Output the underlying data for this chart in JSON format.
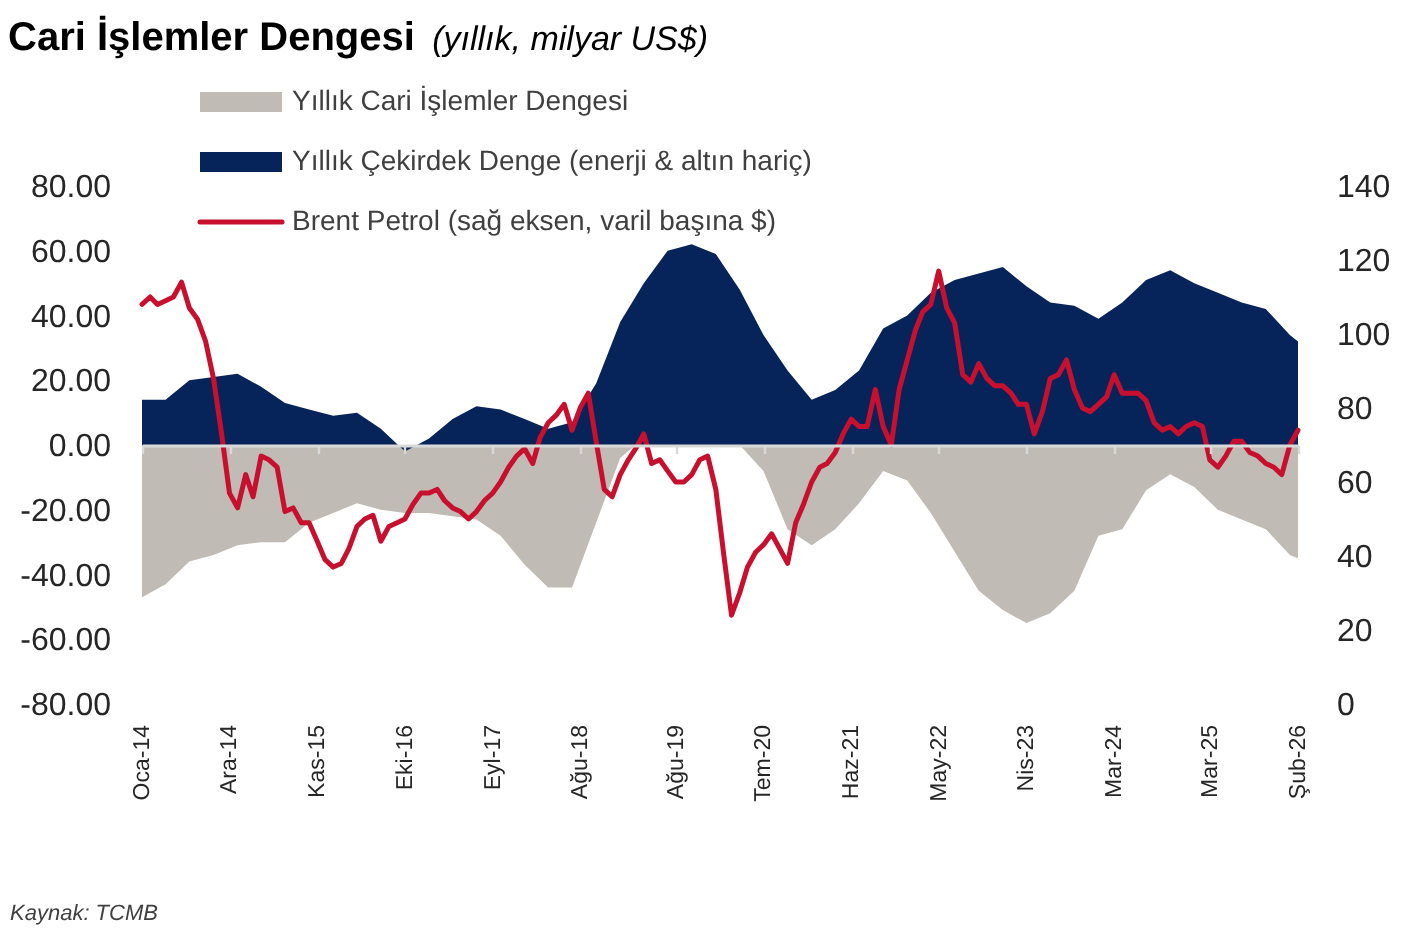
{
  "chart_data": {
    "type": "area",
    "title": "Cari İşlemler Dengesi",
    "subtitle": "(yıllık, milyar US$)",
    "annotations": [
      "Kaynak: TCMB"
    ],
    "xlim": [
      "2014-01",
      "2026-02"
    ],
    "xticks": [
      {
        "value": "2014-01",
        "label": "Oca-14"
      },
      {
        "value": "2014-12",
        "label": "Ara-14"
      },
      {
        "value": "2015-11",
        "label": "Kas-15"
      },
      {
        "value": "2016-10",
        "label": "Eki-16"
      },
      {
        "value": "2017-09",
        "label": "Eyl-17"
      },
      {
        "value": "2018-08",
        "label": "Ağu-18"
      },
      {
        "value": "2019-08",
        "label": "Ağu-19"
      },
      {
        "value": "2020-07",
        "label": "Tem-20"
      },
      {
        "value": "2021-06",
        "label": "Haz-21"
      },
      {
        "value": "2022-05",
        "label": "May-22"
      },
      {
        "value": "2023-04",
        "label": "Nis-23"
      },
      {
        "value": "2024-03",
        "label": "Mar-24"
      },
      {
        "value": "2025-03",
        "label": "Mar-25"
      },
      {
        "value": "2026-02",
        "label": "Şub-26"
      }
    ],
    "ylim": [
      -80,
      80
    ],
    "yticks": [
      {
        "value": -80,
        "label": "-80.00"
      },
      {
        "value": -60,
        "label": "-60.00"
      },
      {
        "value": -40,
        "label": "-40.00"
      },
      {
        "value": -20,
        "label": "-20.00"
      },
      {
        "value": 0,
        "label": "0.00"
      },
      {
        "value": 20,
        "label": "20.00"
      },
      {
        "value": 40,
        "label": "40.00"
      },
      {
        "value": 60,
        "label": "60.00"
      },
      {
        "value": 80,
        "label": "80.00"
      }
    ],
    "y2lim": [
      0,
      140
    ],
    "y2ticks": [
      0,
      20,
      40,
      60,
      80,
      100,
      120,
      140
    ],
    "legend": "top left",
    "series": [
      {
        "name": "Yıllık Cari İşlemler Dengesi",
        "color": "#c0bbb5",
        "x": [
          "2014-01",
          "2014-04",
          "2014-07",
          "2014-10",
          "2015-01",
          "2015-04",
          "2015-07",
          "2015-10",
          "2016-01",
          "2016-04",
          "2016-07",
          "2016-10",
          "2017-01",
          "2017-04",
          "2017-07",
          "2017-10",
          "2018-01",
          "2018-04",
          "2018-07",
          "2018-10",
          "2019-01",
          "2019-03",
          "2019-07",
          "2019-11",
          "2020-04",
          "2020-07",
          "2020-10",
          "2021-01",
          "2021-04",
          "2021-07",
          "2021-10",
          "2022-01",
          "2022-04",
          "2022-07",
          "2022-10",
          "2023-01",
          "2023-04",
          "2023-07",
          "2023-10",
          "2024-01",
          "2024-04",
          "2024-07",
          "2024-10",
          "2025-01",
          "2025-04",
          "2025-07",
          "2025-10",
          "2026-01",
          "2026-02"
        ],
        "values": [
          -47,
          -43,
          -36,
          -34,
          -31,
          -30,
          -30,
          -24,
          -21,
          -18,
          -20,
          -21,
          -21,
          -22,
          -23,
          -28,
          -37,
          -44,
          -44,
          -24,
          -4,
          0,
          null,
          null,
          0,
          -8,
          -26,
          -31,
          -26,
          -18,
          -8,
          -11,
          -21,
          -33,
          -45,
          -51,
          -55,
          -52,
          -45,
          -28,
          -26,
          -14,
          -9,
          -13,
          -20,
          -23,
          -26,
          -34,
          -35
        ]
      },
      {
        "name": "Yıllık Çekirdek Denge (enerji & altın hariç)",
        "color": "#07245a",
        "x": [
          "2014-01",
          "2014-04",
          "2014-07",
          "2014-10",
          "2015-01",
          "2015-04",
          "2015-07",
          "2015-10",
          "2016-01",
          "2016-04",
          "2016-07",
          "2016-10",
          "2017-01",
          "2017-04",
          "2017-07",
          "2017-10",
          "2018-01",
          "2018-04",
          "2018-07",
          "2018-10",
          "2019-01",
          "2019-04",
          "2019-07",
          "2019-10",
          "2020-01",
          "2020-04",
          "2020-07",
          "2020-10",
          "2021-01",
          "2021-04",
          "2021-07",
          "2021-10",
          "2022-01",
          "2022-04",
          "2022-07",
          "2022-10",
          "2023-01",
          "2023-04",
          "2023-07",
          "2023-10",
          "2024-01",
          "2024-04",
          "2024-07",
          "2024-10",
          "2025-01",
          "2025-04",
          "2025-07",
          "2025-10",
          "2026-01",
          "2026-02"
        ],
        "values": [
          14,
          14,
          20,
          21,
          22,
          18,
          13,
          11,
          9,
          10,
          5,
          -2,
          2,
          8,
          12,
          11,
          8,
          5,
          7,
          19,
          38,
          50,
          60,
          62,
          59,
          48,
          34,
          23,
          14,
          17,
          23,
          36,
          40,
          47,
          51,
          53,
          55,
          49,
          44,
          43,
          39,
          44,
          51,
          54,
          50,
          47,
          44,
          42,
          34,
          32
        ]
      },
      {
        "name": "Brent Petrol (sağ eksen, varil başına $)",
        "type": "line",
        "color": "#c8102e",
        "axis": "y2",
        "x": [
          "2014-01",
          "2014-02",
          "2014-03",
          "2014-04",
          "2014-05",
          "2014-06",
          "2014-07",
          "2014-08",
          "2014-09",
          "2014-10",
          "2014-11",
          "2014-12",
          "2015-01",
          "2015-02",
          "2015-03",
          "2015-04",
          "2015-05",
          "2015-06",
          "2015-07",
          "2015-08",
          "2015-09",
          "2015-10",
          "2015-11",
          "2015-12",
          "2016-01",
          "2016-02",
          "2016-03",
          "2016-04",
          "2016-05",
          "2016-06",
          "2016-07",
          "2016-08",
          "2016-09",
          "2016-10",
          "2016-11",
          "2016-12",
          "2017-01",
          "2017-02",
          "2017-03",
          "2017-04",
          "2017-05",
          "2017-06",
          "2017-07",
          "2017-08",
          "2017-09",
          "2017-10",
          "2017-11",
          "2017-12",
          "2018-01",
          "2018-02",
          "2018-03",
          "2018-04",
          "2018-05",
          "2018-06",
          "2018-07",
          "2018-08",
          "2018-09",
          "2018-10",
          "2018-11",
          "2018-12",
          "2019-01",
          "2019-02",
          "2019-03",
          "2019-04",
          "2019-05",
          "2019-06",
          "2019-07",
          "2019-08",
          "2019-09",
          "2019-10",
          "2019-11",
          "2019-12",
          "2020-01",
          "2020-02",
          "2020-03",
          "2020-04",
          "2020-05",
          "2020-06",
          "2020-07",
          "2020-08",
          "2020-09",
          "2020-10",
          "2020-11",
          "2020-12",
          "2021-01",
          "2021-02",
          "2021-03",
          "2021-04",
          "2021-05",
          "2021-06",
          "2021-07",
          "2021-08",
          "2021-09",
          "2021-10",
          "2021-11",
          "2021-12",
          "2022-01",
          "2022-02",
          "2022-03",
          "2022-04",
          "2022-05",
          "2022-06",
          "2022-07",
          "2022-08",
          "2022-09",
          "2022-10",
          "2022-11",
          "2022-12",
          "2023-01",
          "2023-02",
          "2023-03",
          "2023-04",
          "2023-05",
          "2023-06",
          "2023-07",
          "2023-08",
          "2023-09",
          "2023-10",
          "2023-11",
          "2023-12",
          "2024-01",
          "2024-02",
          "2024-03",
          "2024-04",
          "2024-05",
          "2024-06",
          "2024-07",
          "2024-08",
          "2024-09",
          "2024-10",
          "2024-11",
          "2024-12",
          "2025-01",
          "2025-02",
          "2025-03",
          "2025-04",
          "2025-05",
          "2025-06",
          "2025-07",
          "2025-08",
          "2025-09",
          "2025-10",
          "2025-11",
          "2025-12",
          "2026-01",
          "2026-02"
        ],
        "values": [
          108,
          110,
          108,
          109,
          110,
          114,
          107,
          104,
          98,
          88,
          73,
          57,
          53,
          62,
          56,
          67,
          66,
          64,
          52,
          53,
          49,
          49,
          44,
          39,
          37,
          38,
          42,
          48,
          50,
          51,
          44,
          48,
          49,
          50,
          54,
          57,
          57,
          58,
          55,
          53,
          52,
          50,
          52,
          55,
          57,
          60,
          64,
          67,
          69,
          65,
          72,
          76,
          78,
          81,
          74,
          80,
          84,
          71,
          58,
          56,
          62,
          66,
          69,
          73,
          65,
          66,
          63,
          60,
          60,
          62,
          66,
          67,
          58,
          40,
          24,
          30,
          37,
          41,
          43,
          46,
          42,
          38,
          49,
          54,
          60,
          64,
          65,
          68,
          73,
          77,
          75,
          75,
          85,
          75,
          70,
          85,
          93,
          101,
          106,
          108,
          117,
          107,
          103,
          89,
          87,
          92,
          88,
          86,
          86,
          84,
          81,
          81,
          73,
          79,
          88,
          89,
          93,
          85,
          80,
          79,
          81,
          83,
          89,
          84,
          84,
          84,
          82,
          76,
          74,
          75,
          73,
          75,
          76,
          75,
          66,
          64,
          67,
          71,
          71,
          68,
          67,
          65,
          64,
          62,
          70,
          74
        ]
      }
    ]
  }
}
